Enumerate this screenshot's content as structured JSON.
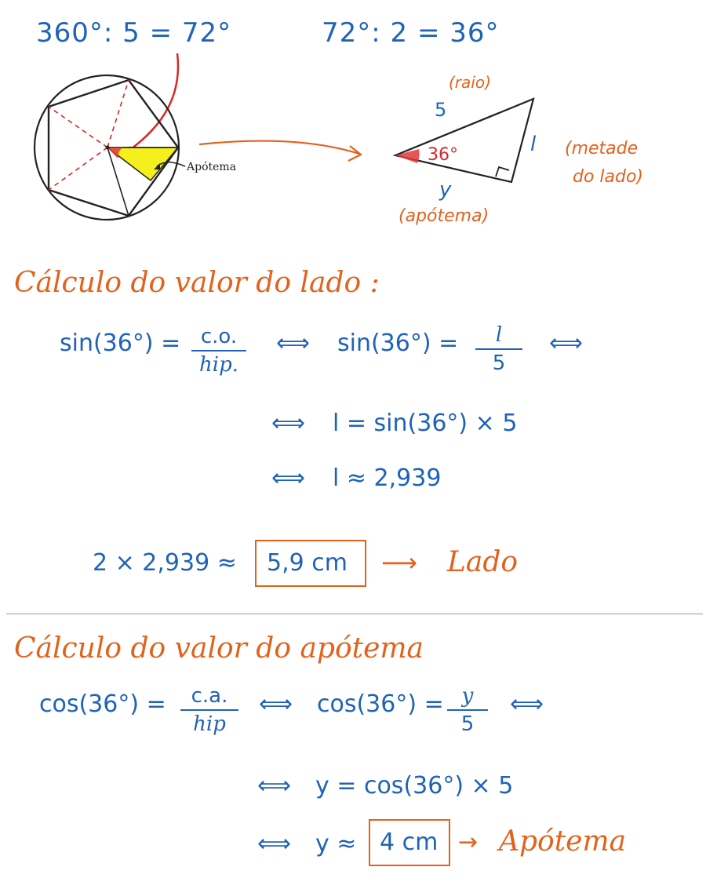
{
  "header": {
    "eq_left": "360°: 5 = 72°",
    "eq_right": "72°: 2 = 36°"
  },
  "figure": {
    "apotema_label": "Apótema",
    "raio_num": "5",
    "raio_label": "(raio)",
    "angle_label": "36°",
    "side_var": "l",
    "side_label_1": "(metade",
    "side_label_2": "do lado)",
    "apo_var": "y",
    "apo_label": "(apótema)"
  },
  "section1": {
    "title": "Cálculo do valor do lado :",
    "line1": {
      "lhs": "sin(36°) =",
      "frac1_num": "c.o.",
      "frac1_den": "hip.",
      "iff1": "⟺",
      "mid": "sin(36°) =",
      "frac2_num": "l",
      "frac2_den": "5",
      "iff2": "⟺"
    },
    "line2": {
      "iff": "⟺",
      "expr": "l = sin(36°) × 5"
    },
    "line3": {
      "iff": "⟺",
      "expr": "l ≈ 2,939"
    },
    "result": {
      "expr": "2 × 2,939 ≈",
      "boxed": "5,9 cm",
      "arrow": "⟶",
      "label": "Lado"
    }
  },
  "section2": {
    "title": "Cálculo do valor do apótema",
    "line1": {
      "lhs": "cos(36°) =",
      "frac1_num": "c.a.",
      "frac1_den": "hip",
      "iff1": "⟺",
      "mid": "cos(36°) =",
      "frac2_num": "y",
      "frac2_den": "5",
      "iff2": "⟺"
    },
    "line2": {
      "iff": "⟺",
      "expr": "y = cos(36°) × 5"
    },
    "line3": {
      "iff": "⟺",
      "expr": "y ≈",
      "boxed": "4 cm",
      "arrow": "→",
      "label": "Apótema"
    }
  }
}
